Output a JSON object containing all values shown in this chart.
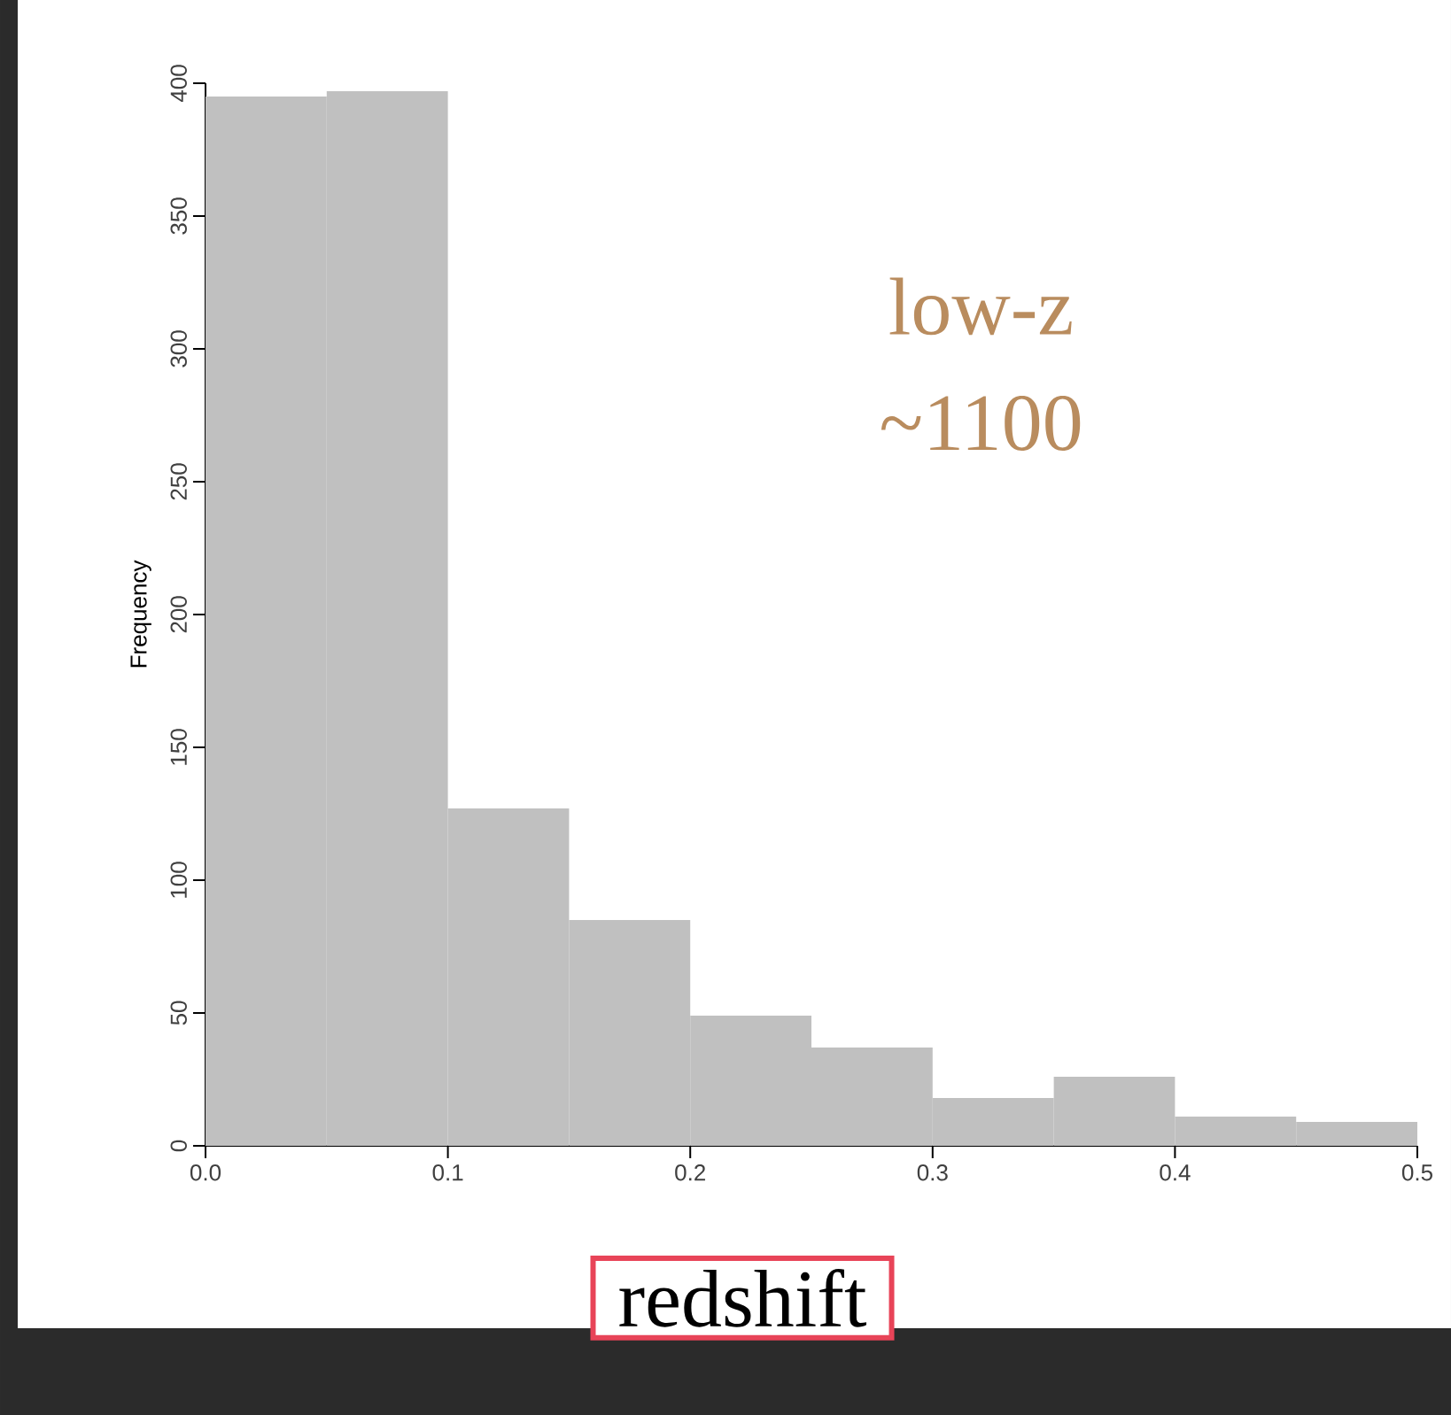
{
  "chart_data": {
    "type": "histogram",
    "xlabel": "redshift",
    "ylabel": "Frequency",
    "annotations": [
      "low-z",
      "~1100"
    ],
    "bins": [
      0,
      0.05,
      0.1,
      0.15,
      0.2,
      0.25,
      0.3,
      0.35,
      0.4,
      0.45,
      0.5
    ],
    "values": [
      395,
      397,
      127,
      85,
      49,
      37,
      18,
      26,
      11,
      9
    ],
    "color": "#c0c0c0",
    "xlim": [
      0,
      0.5
    ],
    "ylim": [
      0,
      400
    ],
    "xticks": [
      {
        "value": 0,
        "label": "0.0"
      },
      0.1,
      0.2,
      0.3,
      0.4,
      0.5
    ],
    "yticks": [
      0,
      50,
      100,
      150,
      200,
      250,
      300,
      350,
      400
    ],
    "grid": false
  }
}
